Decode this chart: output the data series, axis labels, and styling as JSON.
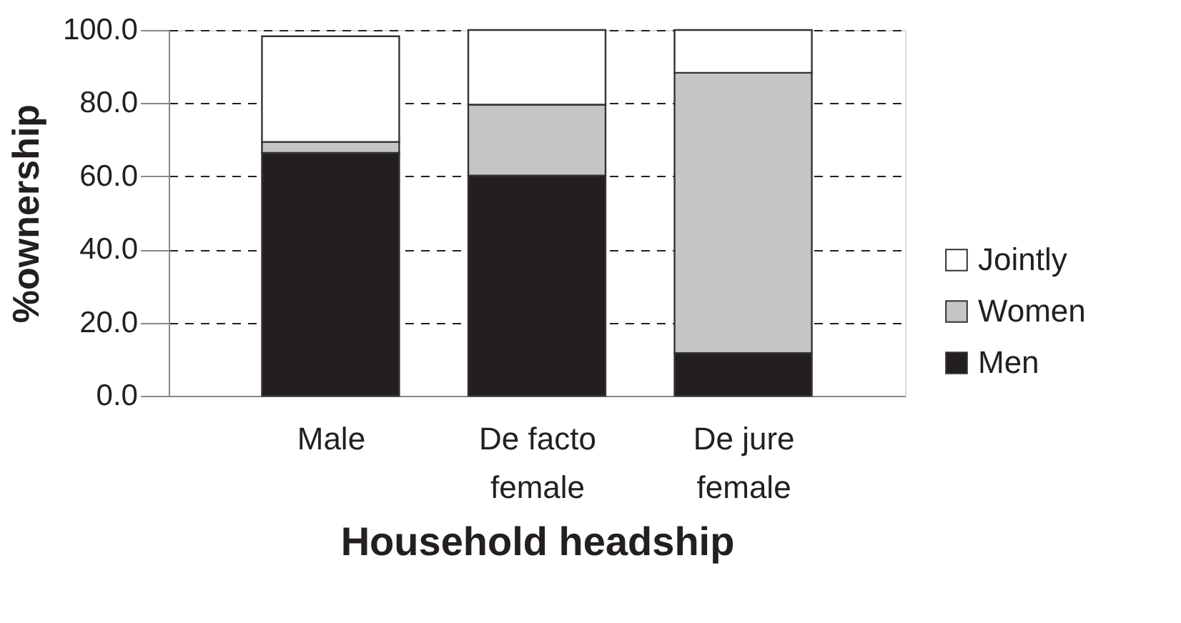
{
  "chart_data": {
    "type": "bar",
    "stacked": true,
    "xlabel": "Household headship",
    "ylabel": "%ownership",
    "categories": [
      "Male",
      "De facto female",
      "De jure female"
    ],
    "series": [
      {
        "name": "Men",
        "color": "#231f20",
        "values": [
          66.4,
          60.2,
          11.7
        ]
      },
      {
        "name": "Women",
        "color": "#c4c5c7",
        "values": [
          3.0,
          19.4,
          76.6
        ]
      },
      {
        "name": "Jointly",
        "color": "#ffffff",
        "values": [
          28.9,
          20.4,
          11.7
        ]
      }
    ],
    "ylim": [
      0,
      100
    ],
    "yticks": [
      {
        "value": 0,
        "label": "0.0"
      },
      {
        "value": 20,
        "label": "20.0"
      },
      {
        "value": 40,
        "label": "40.0"
      },
      {
        "value": 60,
        "label": "60.0"
      },
      {
        "value": 80,
        "label": "80.0"
      },
      {
        "value": 100,
        "label": "100.0"
      }
    ],
    "grid": "y",
    "legend": "right"
  }
}
